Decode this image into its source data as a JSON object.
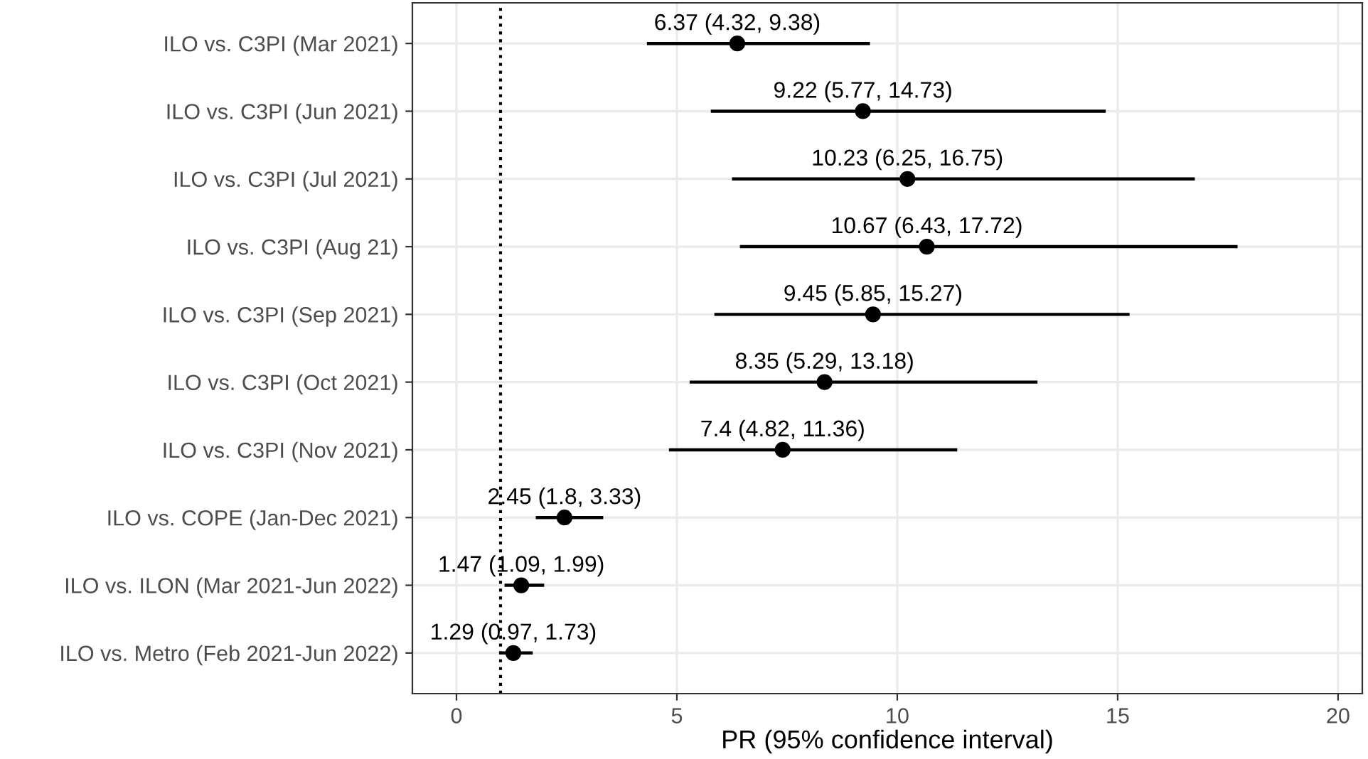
{
  "chart_data": {
    "type": "scatter",
    "orientation": "horizontal",
    "xlabel": "PR (95% confidence interval)",
    "categories": [
      "ILO vs. C3PI (Mar 2021)",
      "ILO vs. C3PI (Jun 2021)",
      "ILO vs. C3PI (Jul 2021)",
      "ILO vs. C3PI (Aug 21)",
      "ILO vs. C3PI (Sep 2021)",
      "ILO vs. C3PI (Oct 2021)",
      "ILO vs. C3PI (Nov 2021)",
      "ILO vs. COPE (Jan-Dec 2021)",
      "ILO vs. ILON (Mar 2021-Jun 2022)",
      "ILO vs. Metro (Feb 2021-Jun 2022)"
    ],
    "values": [
      6.37,
      9.22,
      10.23,
      10.67,
      9.45,
      8.35,
      7.4,
      2.45,
      1.47,
      1.29
    ],
    "errors": [
      [
        4.32,
        9.38
      ],
      [
        5.77,
        14.73
      ],
      [
        6.25,
        16.75
      ],
      [
        6.43,
        17.72
      ],
      [
        5.85,
        15.27
      ],
      [
        5.29,
        13.18
      ],
      [
        4.82,
        11.36
      ],
      [
        1.8,
        3.33
      ],
      [
        1.09,
        1.99
      ],
      [
        0.97,
        1.73
      ]
    ],
    "value_labels": [
      "6.37 (4.32, 9.38)",
      "9.22 (5.77, 14.73)",
      "10.23 (6.25, 16.75)",
      "10.67 (6.43, 17.72)",
      "9.45 (5.85, 15.27)",
      "8.35 (5.29, 13.18)",
      "7.4 (4.82, 11.36)",
      "2.45 (1.8, 3.33)",
      "1.47 (1.09, 1.99)",
      "1.29 (0.97, 1.73)"
    ],
    "color": "#000000",
    "xlim": [
      -1,
      20.55
    ],
    "xticks": [
      0,
      5,
      10,
      15,
      20
    ],
    "ref_lines": [
      {
        "axis": "x",
        "value": 1,
        "line_style": "dotted",
        "color": "#000000"
      }
    ],
    "grid": true,
    "marker": "circle"
  }
}
